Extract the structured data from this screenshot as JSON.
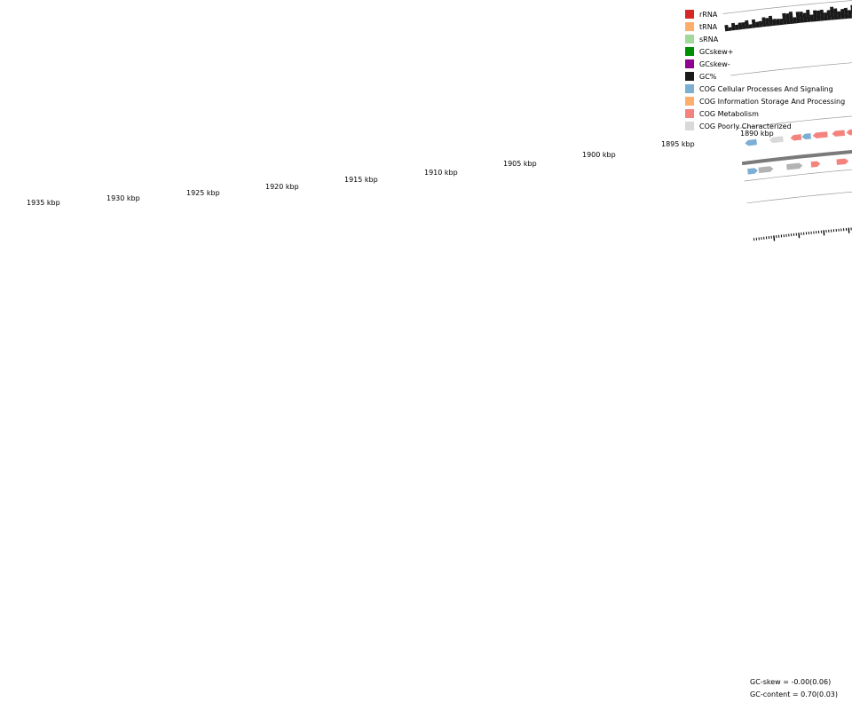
{
  "legend": [
    {
      "label": "rRNA",
      "color": "#d62728"
    },
    {
      "label": "tRNA",
      "color": "#fdae6b"
    },
    {
      "label": "sRNA",
      "color": "#a1d99b"
    },
    {
      "label": "GCskew+",
      "color": "#008f00"
    },
    {
      "label": "GCskew-",
      "color": "#8f008f"
    },
    {
      "label": "GC%",
      "color": "#1a1a1a"
    },
    {
      "label": "COG Cellular Processes And Signaling",
      "color": "#7bafd4"
    },
    {
      "label": "COG Information Storage And Processing",
      "color": "#fdae6b"
    },
    {
      "label": "COG Metabolism",
      "color": "#f4837d"
    },
    {
      "label": "COG Poorly Characterized",
      "color": "#d9d9d9"
    }
  ],
  "colors": {
    "metabolism": "#f4837d",
    "info": "#fdae6b",
    "cellular": "#7bafd4",
    "poor": "#d9d9d9",
    "hypothetical": "#b3b3b3",
    "skew_pos": "#008f00",
    "skew_neg": "#8f008f",
    "gc": "#1a1a1a"
  },
  "axis_labels": [
    "1935 kbp",
    "1930 kbp",
    "1925 kbp",
    "1920 kbp",
    "1915 kbp",
    "1910 kbp",
    "1905 kbp",
    "1900 kbp",
    "1895 kbp",
    "1890 kbp"
  ],
  "stats": {
    "gc_skew": "GC-skew = -0.00(0.06)",
    "gc_content": "GC-content = 0.70(0.03)"
  }
}
